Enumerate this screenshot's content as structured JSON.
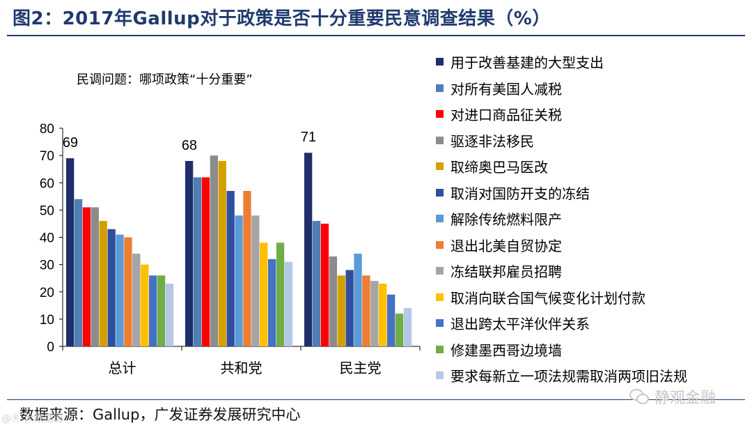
{
  "header": {
    "title": "图2：2017年Gallup对于政策是否十分重要民意调查结果（%）"
  },
  "subtitle": "民调问题：哪项政策“十分重要”",
  "footer": {
    "source": "数据来源：Gallup，广发证券发展研究中心",
    "watermark_right": "静观金融",
    "watermark_left": "@Ⓡ 大数据国"
  },
  "chart_data": {
    "type": "bar",
    "title": "2017年Gallup对于政策是否十分重要民意调查结果（%）",
    "xlabel": "",
    "ylabel": "",
    "ylim": [
      0,
      80
    ],
    "yticks": [
      0,
      10,
      20,
      30,
      40,
      50,
      60,
      70,
      80
    ],
    "categories": [
      "总计",
      "共和党",
      "民主党"
    ],
    "group_value_labels": [
      "69",
      "68",
      "71"
    ],
    "legend_position": "right",
    "series": [
      {
        "name": "用于改善基建的大型支出",
        "color": "#1f2f6b",
        "values": [
          69,
          68,
          71
        ]
      },
      {
        "name": "对所有美国人减税",
        "color": "#4f7fb5",
        "values": [
          54,
          62,
          46
        ]
      },
      {
        "name": "对进口商品征关税",
        "color": "#ff0000",
        "values": [
          51,
          62,
          45
        ]
      },
      {
        "name": "驱逐非法移民",
        "color": "#8c8c8c",
        "values": [
          51,
          70,
          33
        ]
      },
      {
        "name": "取缔奥巴马医改",
        "color": "#d4a000",
        "values": [
          46,
          68,
          26
        ]
      },
      {
        "name": "取消对国防开支的冻结",
        "color": "#2f4f9e",
        "values": [
          43,
          57,
          28
        ]
      },
      {
        "name": "解除传统燃料限产",
        "color": "#5b9bd5",
        "values": [
          41,
          48,
          34
        ]
      },
      {
        "name": "退出北美自贸协定",
        "color": "#ed7d31",
        "values": [
          40,
          57,
          26
        ]
      },
      {
        "name": "冻结联邦雇员招聘",
        "color": "#a5a5a5",
        "values": [
          34,
          48,
          24
        ]
      },
      {
        "name": "取消向联合国气候变化计划付款",
        "color": "#ffc000",
        "values": [
          30,
          38,
          23
        ]
      },
      {
        "name": "退出跨太平洋伙伴关系",
        "color": "#4472c4",
        "values": [
          26,
          32,
          19
        ]
      },
      {
        "name": "修建墨西哥边境墙",
        "color": "#70ad47",
        "values": [
          26,
          38,
          12
        ]
      },
      {
        "name": "要求每新立一项法规需取消两项旧法规",
        "color": "#b4c7e7",
        "values": [
          23,
          31,
          14
        ]
      }
    ]
  }
}
